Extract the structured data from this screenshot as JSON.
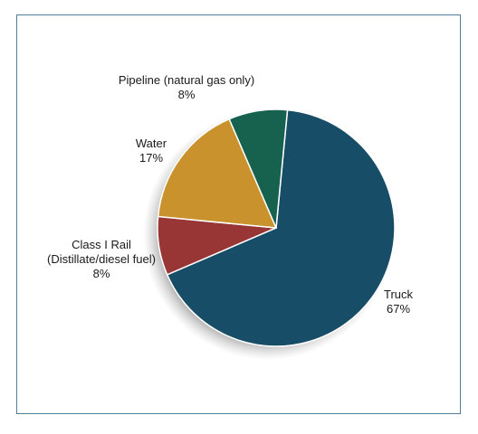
{
  "chart_data": {
    "type": "pie",
    "title": "",
    "slices": [
      {
        "label_line1": "Truck",
        "label_line2": "",
        "value_label": "67%",
        "value": 67,
        "color": "#174d66"
      },
      {
        "label_line1": "Class I Rail",
        "label_line2": "(Distillate/diesel fuel)",
        "value_label": "8%",
        "value": 8,
        "color": "#983636"
      },
      {
        "label_line1": "Water",
        "label_line2": "",
        "value_label": "17%",
        "value": 17,
        "color": "#c9922d"
      },
      {
        "label_line1": "Pipeline (natural gas only)",
        "label_line2": "",
        "value_label": "8%",
        "value": 8,
        "color": "#16624f"
      }
    ]
  }
}
